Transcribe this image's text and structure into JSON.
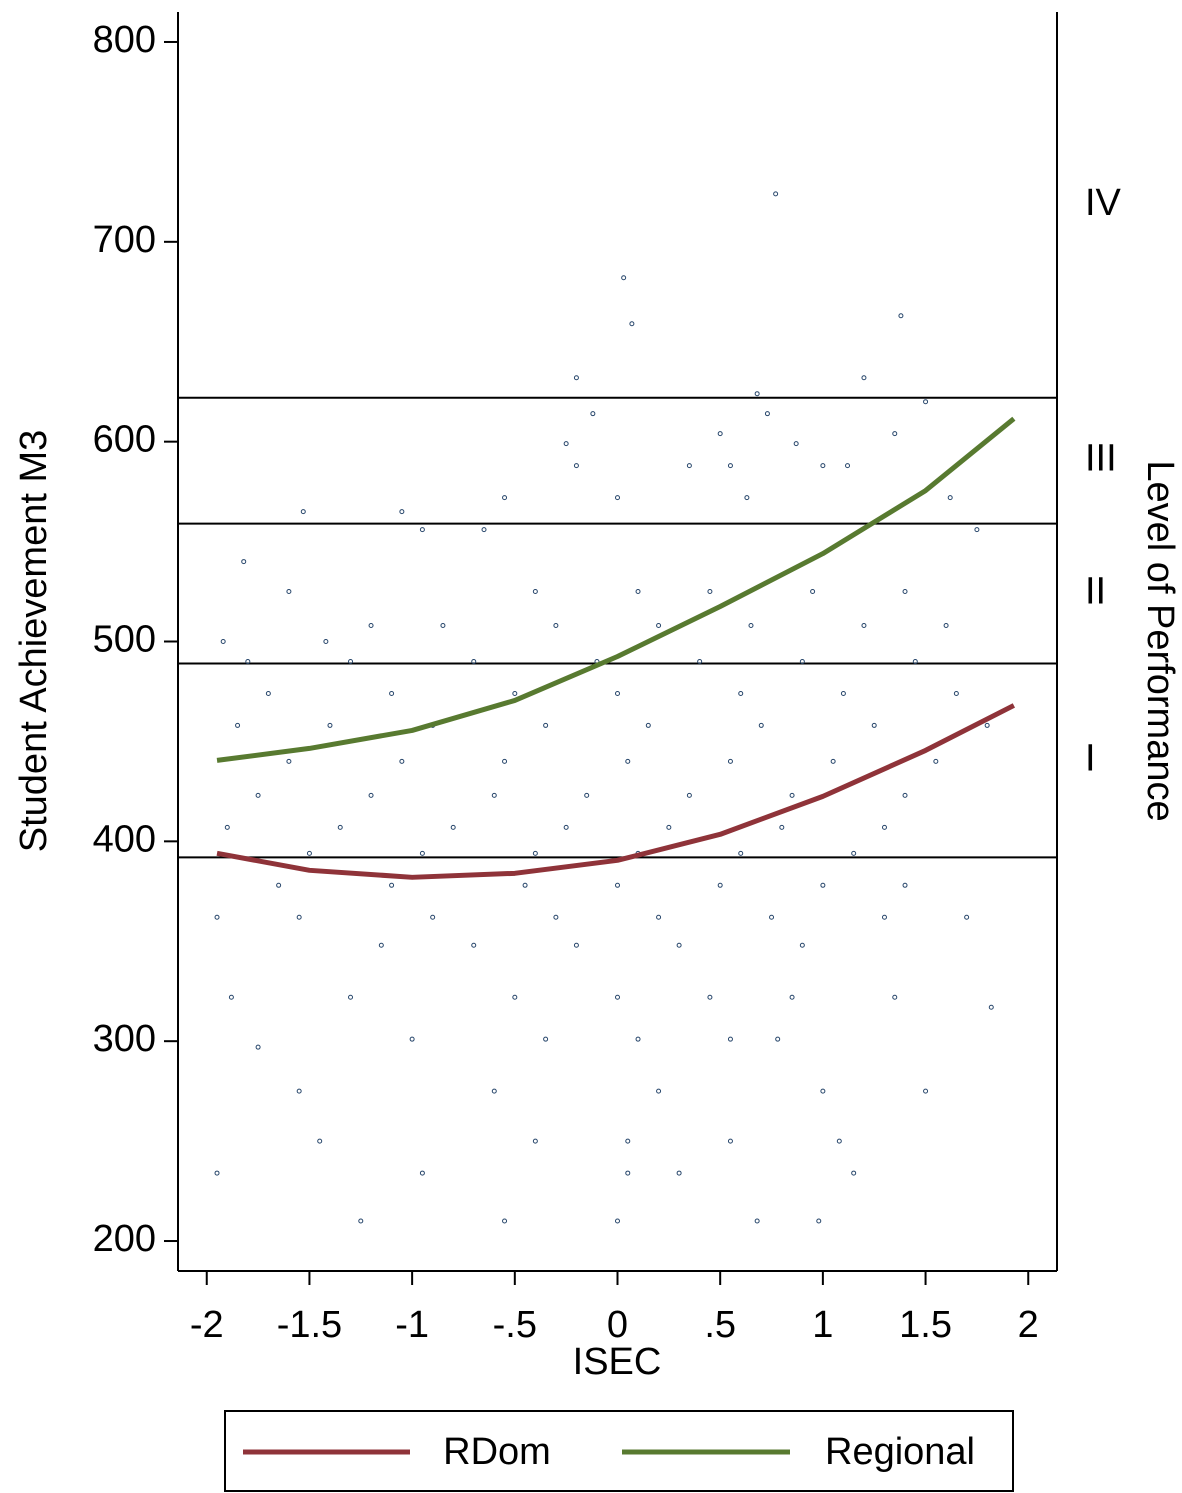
{
  "chart_data": {
    "type": "scatter",
    "x_title": "ISEC",
    "y_title": "Student Achievement M3",
    "y2_title": "Level of Performance",
    "xlim": [
      -2.14,
      2.14
    ],
    "ylim": [
      185,
      815
    ],
    "xticks": [
      -2,
      {
        "value": -1.5,
        "label": "-1.5"
      },
      -1,
      {
        "value": -0.5,
        "label": "-.5"
      },
      0,
      {
        "value": 0.5,
        "label": ".5"
      },
      1,
      1.5,
      2
    ],
    "yticks": [
      200,
      300,
      400,
      500,
      600,
      700,
      800
    ],
    "point_color": "#27466b",
    "points": {
      "x": [
        0.77,
        0.03,
        0.07,
        1.38,
        -0.2,
        1.2,
        0.68,
        0.73,
        -0.12,
        1.5,
        0.5,
        1.35,
        0.87,
        -0.25,
        0.0,
        0.35,
        0.55,
        1.0,
        1.12,
        -0.2,
        -0.55,
        -0.95,
        -1.05,
        -1.53,
        0.63,
        1.62,
        1.75,
        -1.82,
        -1.6,
        -0.65,
        -1.2,
        -0.4,
        0.1,
        0.45,
        0.95,
        1.4,
        -1.92,
        -1.42,
        -0.85,
        -0.3,
        0.2,
        0.65,
        1.2,
        1.6,
        -1.8,
        -1.3,
        -0.7,
        -0.1,
        0.4,
        0.9,
        1.45,
        -1.7,
        -1.1,
        -0.5,
        0.0,
        0.6,
        1.1,
        1.65,
        -1.85,
        -1.4,
        -0.9,
        -0.35,
        0.15,
        0.7,
        1.25,
        1.8,
        -1.6,
        -1.05,
        -0.55,
        0.05,
        0.55,
        1.05,
        1.55,
        -1.75,
        -1.2,
        -0.6,
        -0.15,
        0.35,
        0.85,
        1.4,
        -1.9,
        -1.35,
        -0.8,
        -0.25,
        0.25,
        0.8,
        1.3,
        -1.5,
        -0.95,
        -0.4,
        0.1,
        0.6,
        1.15,
        -1.65,
        -1.1,
        -0.45,
        0.0,
        0.5,
        1.0,
        1.4,
        -1.95,
        -1.55,
        -0.9,
        -0.3,
        0.2,
        0.75,
        1.3,
        1.7,
        -1.15,
        -0.7,
        -0.2,
        0.3,
        0.9,
        -1.88,
        -1.3,
        -0.5,
        0.0,
        0.45,
        0.85,
        1.35,
        1.82,
        -1.75,
        -1.0,
        -0.35,
        0.1,
        0.55,
        0.78,
        -1.55,
        -0.6,
        0.2,
        1.0,
        1.5,
        -1.45,
        -0.4,
        0.05,
        0.55,
        1.08,
        -1.95,
        -0.95,
        0.05,
        0.3,
        1.15,
        -1.25,
        -0.55,
        0.0,
        0.68,
        0.98
      ],
      "y": [
        724,
        682,
        659,
        663,
        632,
        632,
        624,
        614,
        614,
        620,
        604,
        604,
        599,
        599,
        572,
        588,
        588,
        588,
        588,
        588,
        572,
        556,
        565,
        565,
        572,
        572,
        556,
        540,
        525,
        556,
        508,
        525,
        525,
        525,
        525,
        525,
        500,
        500,
        508,
        508,
        508,
        508,
        508,
        508,
        490,
        490,
        490,
        490,
        490,
        490,
        490,
        474,
        474,
        474,
        474,
        474,
        474,
        474,
        458,
        458,
        458,
        458,
        458,
        458,
        458,
        458,
        440,
        440,
        440,
        440,
        440,
        440,
        440,
        423,
        423,
        423,
        423,
        423,
        423,
        423,
        407,
        407,
        407,
        407,
        407,
        407,
        407,
        394,
        394,
        394,
        394,
        394,
        394,
        378,
        378,
        378,
        378,
        378,
        378,
        378,
        362,
        362,
        362,
        362,
        362,
        362,
        362,
        362,
        348,
        348,
        348,
        348,
        348,
        322,
        322,
        322,
        322,
        322,
        322,
        322,
        317,
        297,
        301,
        301,
        301,
        301,
        301,
        275,
        275,
        275,
        275,
        275,
        250,
        250,
        250,
        250,
        250,
        234,
        234,
        234,
        234,
        234,
        210,
        210,
        210,
        210,
        210
      ]
    },
    "series": [
      {
        "name": "RDom",
        "color": "#8f3339",
        "x": [
          -1.95,
          -1.5,
          -1,
          -0.5,
          0,
          0.5,
          1,
          1.5,
          1.93
        ],
        "values": [
          394,
          385.5,
          382,
          384,
          390.5,
          403.5,
          422.5,
          445.5,
          468
        ]
      },
      {
        "name": "Regional",
        "color": "#587a30",
        "x": [
          -1.95,
          -1.5,
          -1,
          -0.5,
          0,
          0.5,
          1,
          1.5,
          1.93
        ],
        "values": [
          440.5,
          446.5,
          455.5,
          470.5,
          492.5,
          517.5,
          544,
          575.5,
          611.5
        ]
      }
    ],
    "level_cutoffs": [
      392,
      489,
      559,
      622
    ],
    "levels": [
      "I",
      "II",
      "III",
      "IV"
    ]
  }
}
